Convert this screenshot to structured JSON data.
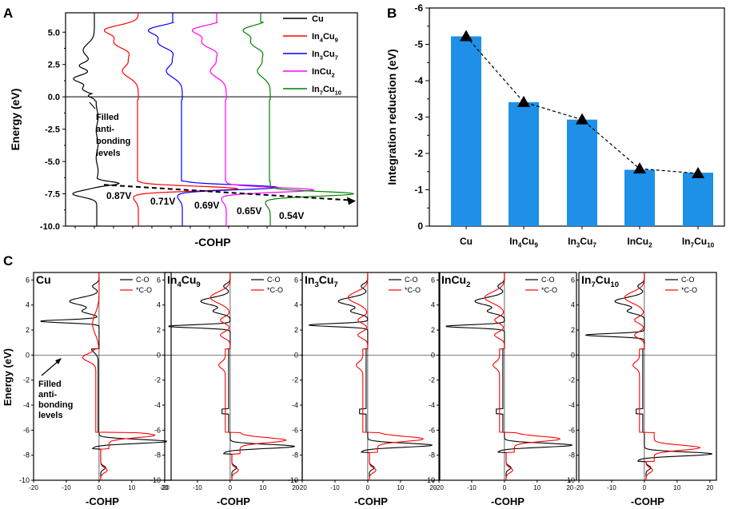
{
  "colors": {
    "black": "#000000",
    "red": "#ff0000",
    "blue": "#0000ff",
    "magenta": "#ff00ff",
    "green": "#008000",
    "bar": "#1e90e8"
  },
  "chart_data": [
    {
      "panel": "A",
      "type": "line",
      "xlabel": "-COHP",
      "ylabel": "Energy (eV)",
      "ylim": [
        -10.0,
        6.5
      ],
      "yticks": [
        "5.0",
        "2.5",
        "0.0",
        "-2.5",
        "-5.0",
        "-7.5",
        "-10.0"
      ],
      "series_labels": [
        {
          "main": "Cu",
          "sub": ""
        },
        {
          "main": "In",
          "sub": "4",
          "main2": "Cu",
          "sub2": "9"
        },
        {
          "main": "In",
          "sub": "3",
          "main2": "Cu",
          "sub2": "7"
        },
        {
          "main": "InCu",
          "sub": "2",
          "main2": "",
          "sub2": ""
        },
        {
          "main": "In",
          "sub": "7",
          "main2": "Cu",
          "sub2": "10"
        }
      ],
      "series_colors": [
        "#000000",
        "#ff0000",
        "#0000ff",
        "#ff00ff",
        "#008000"
      ],
      "peak_energies": [
        -7.5,
        -7.1,
        -7.0,
        -7.2,
        -7.5
      ],
      "voltage_labels": [
        "0.87V",
        "0.71V",
        "0.69V",
        "0.65V",
        "0.54V"
      ],
      "annotation": [
        "Filled",
        "anti-",
        "bonding",
        "levels"
      ]
    },
    {
      "panel": "B",
      "type": "bar",
      "ylabel": "Integration reduction (eV)",
      "ylim": [
        0,
        -6
      ],
      "yticks": [
        "0",
        "-1",
        "-2",
        "-3",
        "-4",
        "-5",
        "-6"
      ],
      "categories": [
        {
          "a": "Cu",
          "as": "",
          "b": "",
          "bs": ""
        },
        {
          "a": "In",
          "as": "4",
          "b": "Cu",
          "bs": "9"
        },
        {
          "a": "In",
          "as": "3",
          "b": "Cu",
          "bs": "7"
        },
        {
          "a": "InCu",
          "as": "2",
          "b": "",
          "bs": ""
        },
        {
          "a": "In",
          "as": "7",
          "b": "Cu",
          "bs": "10"
        }
      ],
      "values": [
        -5.22,
        -3.41,
        -2.93,
        -1.55,
        -1.47
      ],
      "markers": [
        -5.22,
        -3.41,
        -2.93,
        -1.58,
        -1.45
      ]
    },
    {
      "panel": "C",
      "type": "line",
      "xlabel": "-COHP",
      "ylabel": "Energy (eV)",
      "xticks": [
        "-20",
        "-10",
        "0",
        "10",
        "20"
      ],
      "yticks": [
        "6",
        "4",
        "2",
        "0",
        "-2",
        "-4",
        "-6",
        "-8",
        "-10"
      ],
      "legend": [
        "C-O",
        "*C-O"
      ],
      "annotation": [
        "Filled",
        "anti-",
        "bonding",
        "levels"
      ],
      "subpanels": [
        {
          "a": "Cu",
          "as": "",
          "b": "",
          "bs": "",
          "peak": -6.9,
          "peak_amp": 21,
          "pi": 2.7,
          "pi_amp": -18
        },
        {
          "a": "In",
          "as": "4",
          "b": "Cu",
          "bs": "9",
          "peak": -7.3,
          "peak_amp": 20,
          "pi": 2.3,
          "pi_amp": -19
        },
        {
          "a": "In",
          "as": "3",
          "b": "Cu",
          "bs": "7",
          "peak": -7.2,
          "peak_amp": 20,
          "pi": 2.4,
          "pi_amp": -18
        },
        {
          "a": "InCu",
          "as": "2",
          "b": "",
          "bs": "",
          "peak": -7.2,
          "peak_amp": 21,
          "pi": 2.3,
          "pi_amp": -18
        },
        {
          "a": "In",
          "as": "7",
          "b": "Cu",
          "bs": "10",
          "peak": -7.9,
          "peak_amp": 21,
          "pi": 1.6,
          "pi_amp": -18
        }
      ]
    }
  ]
}
